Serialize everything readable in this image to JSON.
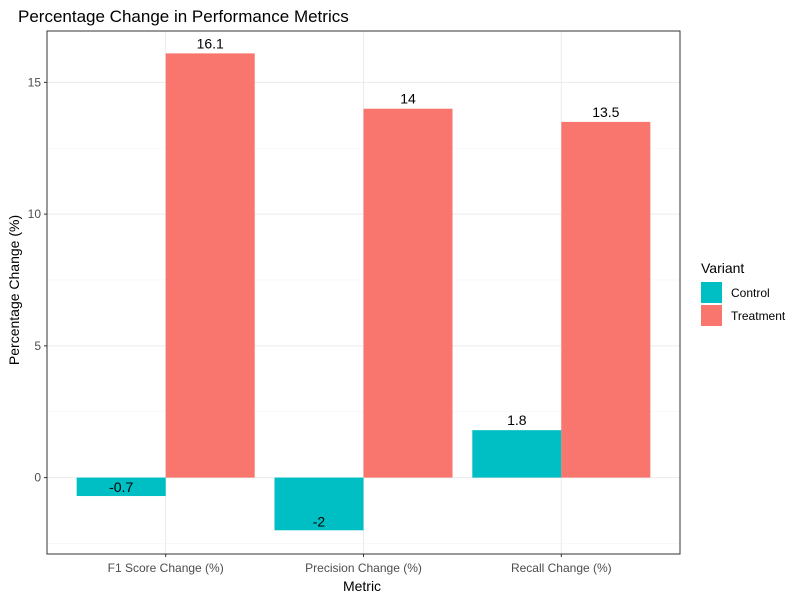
{
  "chart_data": {
    "type": "bar",
    "title": "Percentage Change in Performance Metrics",
    "xlabel": "Metric",
    "ylabel": "Percentage Change (%)",
    "categories": [
      "F1 Score Change (%)",
      "Precision Change (%)",
      "Recall Change (%)"
    ],
    "series": [
      {
        "name": "Control",
        "values": [
          -0.7,
          -2,
          1.8
        ],
        "labels": [
          "-0.7",
          "-2",
          "1.8"
        ],
        "color": "#00BFC4"
      },
      {
        "name": "Treatment",
        "values": [
          16.1,
          14,
          13.5
        ],
        "labels": [
          "16.1",
          "14",
          "13.5"
        ],
        "color": "#F8766D"
      }
    ],
    "ylim": [
      -2.9,
      16.95
    ],
    "yticks": [
      0,
      5,
      10,
      15
    ],
    "grid": true,
    "legend": {
      "title": "Variant",
      "position": "right"
    },
    "colors": {
      "panel_border": "#333333",
      "grid_major": "#ebebeb",
      "grid_minor": "#f5f5f5"
    }
  }
}
